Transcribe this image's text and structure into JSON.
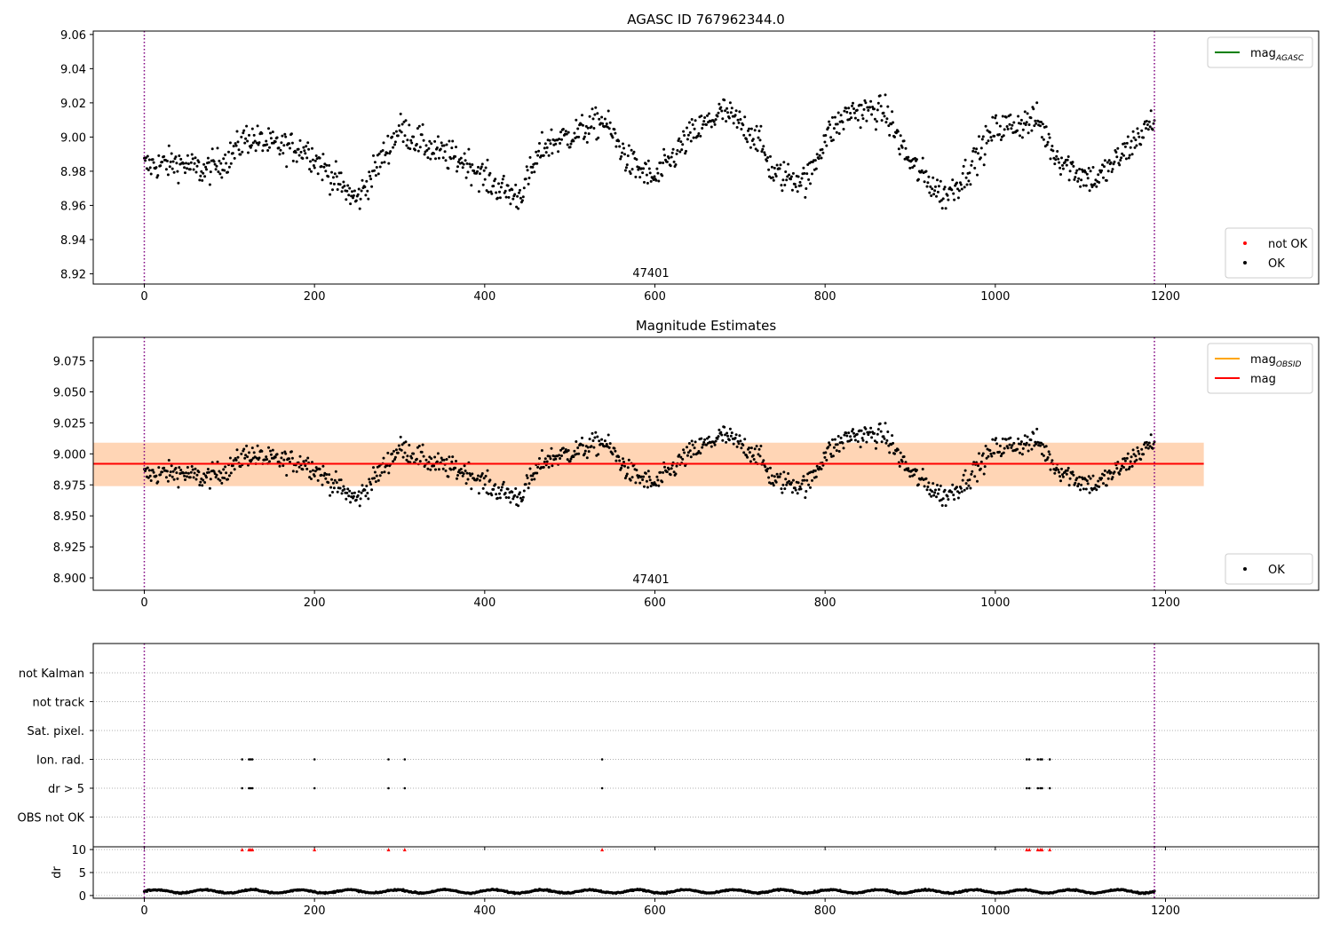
{
  "chart_data": [
    {
      "id": "p1",
      "type": "scatter",
      "title": "AGASC ID 767962344.0",
      "annotation": "47401",
      "xlim": [
        -60,
        1380
      ],
      "ylim": [
        8.914,
        9.062
      ],
      "xticks": [
        0,
        200,
        400,
        600,
        800,
        1000,
        1200
      ],
      "yticks": [
        8.92,
        8.94,
        8.96,
        8.98,
        9.0,
        9.02,
        9.04,
        9.06
      ],
      "ytick_decimals": 2,
      "vlines": [
        0,
        1187
      ],
      "legends": [
        {
          "position": "top-right",
          "entries": [
            {
              "kind": "line",
              "color": "#008000",
              "label": "mag",
              "sub": "AGASC"
            }
          ]
        },
        {
          "position": "bottom-right",
          "entries": [
            {
              "kind": "dot",
              "color": "#ff0000",
              "label": "not OK"
            },
            {
              "kind": "dot",
              "color": "#000000",
              "label": "OK"
            }
          ]
        }
      ],
      "series": [
        {
          "name": "OK",
          "color": "#000000",
          "x_range": [
            0,
            1187
          ],
          "n_points": 1187,
          "trend_x": [
            0,
            40,
            70,
            100,
            120,
            150,
            190,
            230,
            250,
            270,
            300,
            340,
            380,
            410,
            440,
            470,
            520,
            540,
            570,
            600,
            640,
            680,
            720,
            740,
            780,
            800,
            830,
            870,
            900,
            940,
            960,
            1000,
            1050,
            1070,
            1100,
            1120,
            1140,
            1187
          ],
          "trend_y": [
            8.983,
            8.985,
            8.98,
            8.988,
            9.0,
            8.995,
            8.993,
            8.972,
            8.963,
            8.98,
            9.005,
            8.992,
            8.985,
            8.972,
            8.965,
            8.995,
            9.005,
            9.01,
            8.985,
            8.975,
            9.0,
            9.015,
            9.0,
            8.978,
            8.975,
            9.0,
            9.015,
            9.015,
            8.985,
            8.965,
            8.975,
            9.005,
            9.01,
            8.99,
            8.978,
            8.975,
            8.985,
            9.01
          ],
          "scatter": 0.009
        }
      ]
    },
    {
      "id": "p2",
      "type": "scatter",
      "title": "Magnitude Estimates",
      "annotation": "47401",
      "xlim": [
        -60,
        1380
      ],
      "ylim": [
        8.89,
        9.094
      ],
      "xticks": [
        0,
        200,
        400,
        600,
        800,
        1000,
        1200
      ],
      "yticks": [
        8.9,
        8.925,
        8.95,
        8.975,
        9.0,
        9.025,
        9.05,
        9.075
      ],
      "ytick_decimals": 3,
      "vlines": [
        0,
        1187
      ],
      "bands": [
        {
          "x": [
            -60,
            1245
          ],
          "y": [
            8.974,
            9.009
          ],
          "color": "#ffc0cb",
          "opacity": 0.45
        },
        {
          "x": [
            -60,
            1245
          ],
          "y": [
            8.974,
            9.009
          ],
          "color": "#ffa500",
          "opacity": 0.22
        }
      ],
      "hlines": [
        {
          "y": 8.992,
          "x": [
            -60,
            1245
          ],
          "color": "#ff0000"
        }
      ],
      "legends": [
        {
          "position": "top-right",
          "entries": [
            {
              "kind": "line",
              "color": "#ffa500",
              "label": "mag",
              "sub": "OBSID"
            },
            {
              "kind": "line",
              "color": "#ff0000",
              "label": "mag"
            }
          ]
        },
        {
          "position": "bottom-right",
          "entries": [
            {
              "kind": "dot",
              "color": "#000000",
              "label": "OK"
            }
          ]
        }
      ],
      "series": [
        {
          "name": "OK",
          "color": "#000000",
          "same_as": "p1"
        }
      ]
    },
    {
      "id": "p3",
      "type": "scatter",
      "xlim": [
        -60,
        1380
      ],
      "xticks": [
        0,
        200,
        400,
        600,
        800,
        1000,
        1200
      ],
      "vlines": [
        0,
        1187
      ],
      "categories": [
        "not Kalman",
        "not track",
        "Sat. pixel.",
        "Ion. rad.",
        "dr > 5",
        "OBS not OK"
      ],
      "flag_points": {
        "Ion. rad.": [
          115,
          123,
          125,
          127,
          200,
          287,
          306,
          538,
          1037,
          1040,
          1050,
          1053,
          1055,
          1064
        ],
        "dr > 5": [
          115,
          123,
          125,
          127,
          200,
          287,
          306,
          538,
          1037,
          1040,
          1050,
          1053,
          1055,
          1064
        ]
      }
    },
    {
      "id": "p4",
      "type": "scatter",
      "ylabel": "dr",
      "xlim": [
        -60,
        1380
      ],
      "ylim": [
        -0.6,
        10.6
      ],
      "yticks": [
        0,
        5,
        10
      ],
      "xticks": [
        0,
        200,
        400,
        600,
        800,
        1000,
        1200
      ],
      "xtick_labels": [
        "0",
        "200",
        "400",
        "600",
        "800",
        "1000",
        "1200"
      ],
      "vlines": [
        0,
        1187
      ],
      "clipped_points": {
        "y": 10,
        "color": "#ff0000",
        "x": [
          115,
          123,
          125,
          127,
          200,
          287,
          306,
          538,
          1037,
          1040,
          1050,
          1053,
          1055,
          1064
        ]
      },
      "series": [
        {
          "name": "dr",
          "color": "#000000",
          "x_range": [
            0,
            1187
          ],
          "typical": 0.9,
          "spread": 0.3
        }
      ]
    }
  ]
}
